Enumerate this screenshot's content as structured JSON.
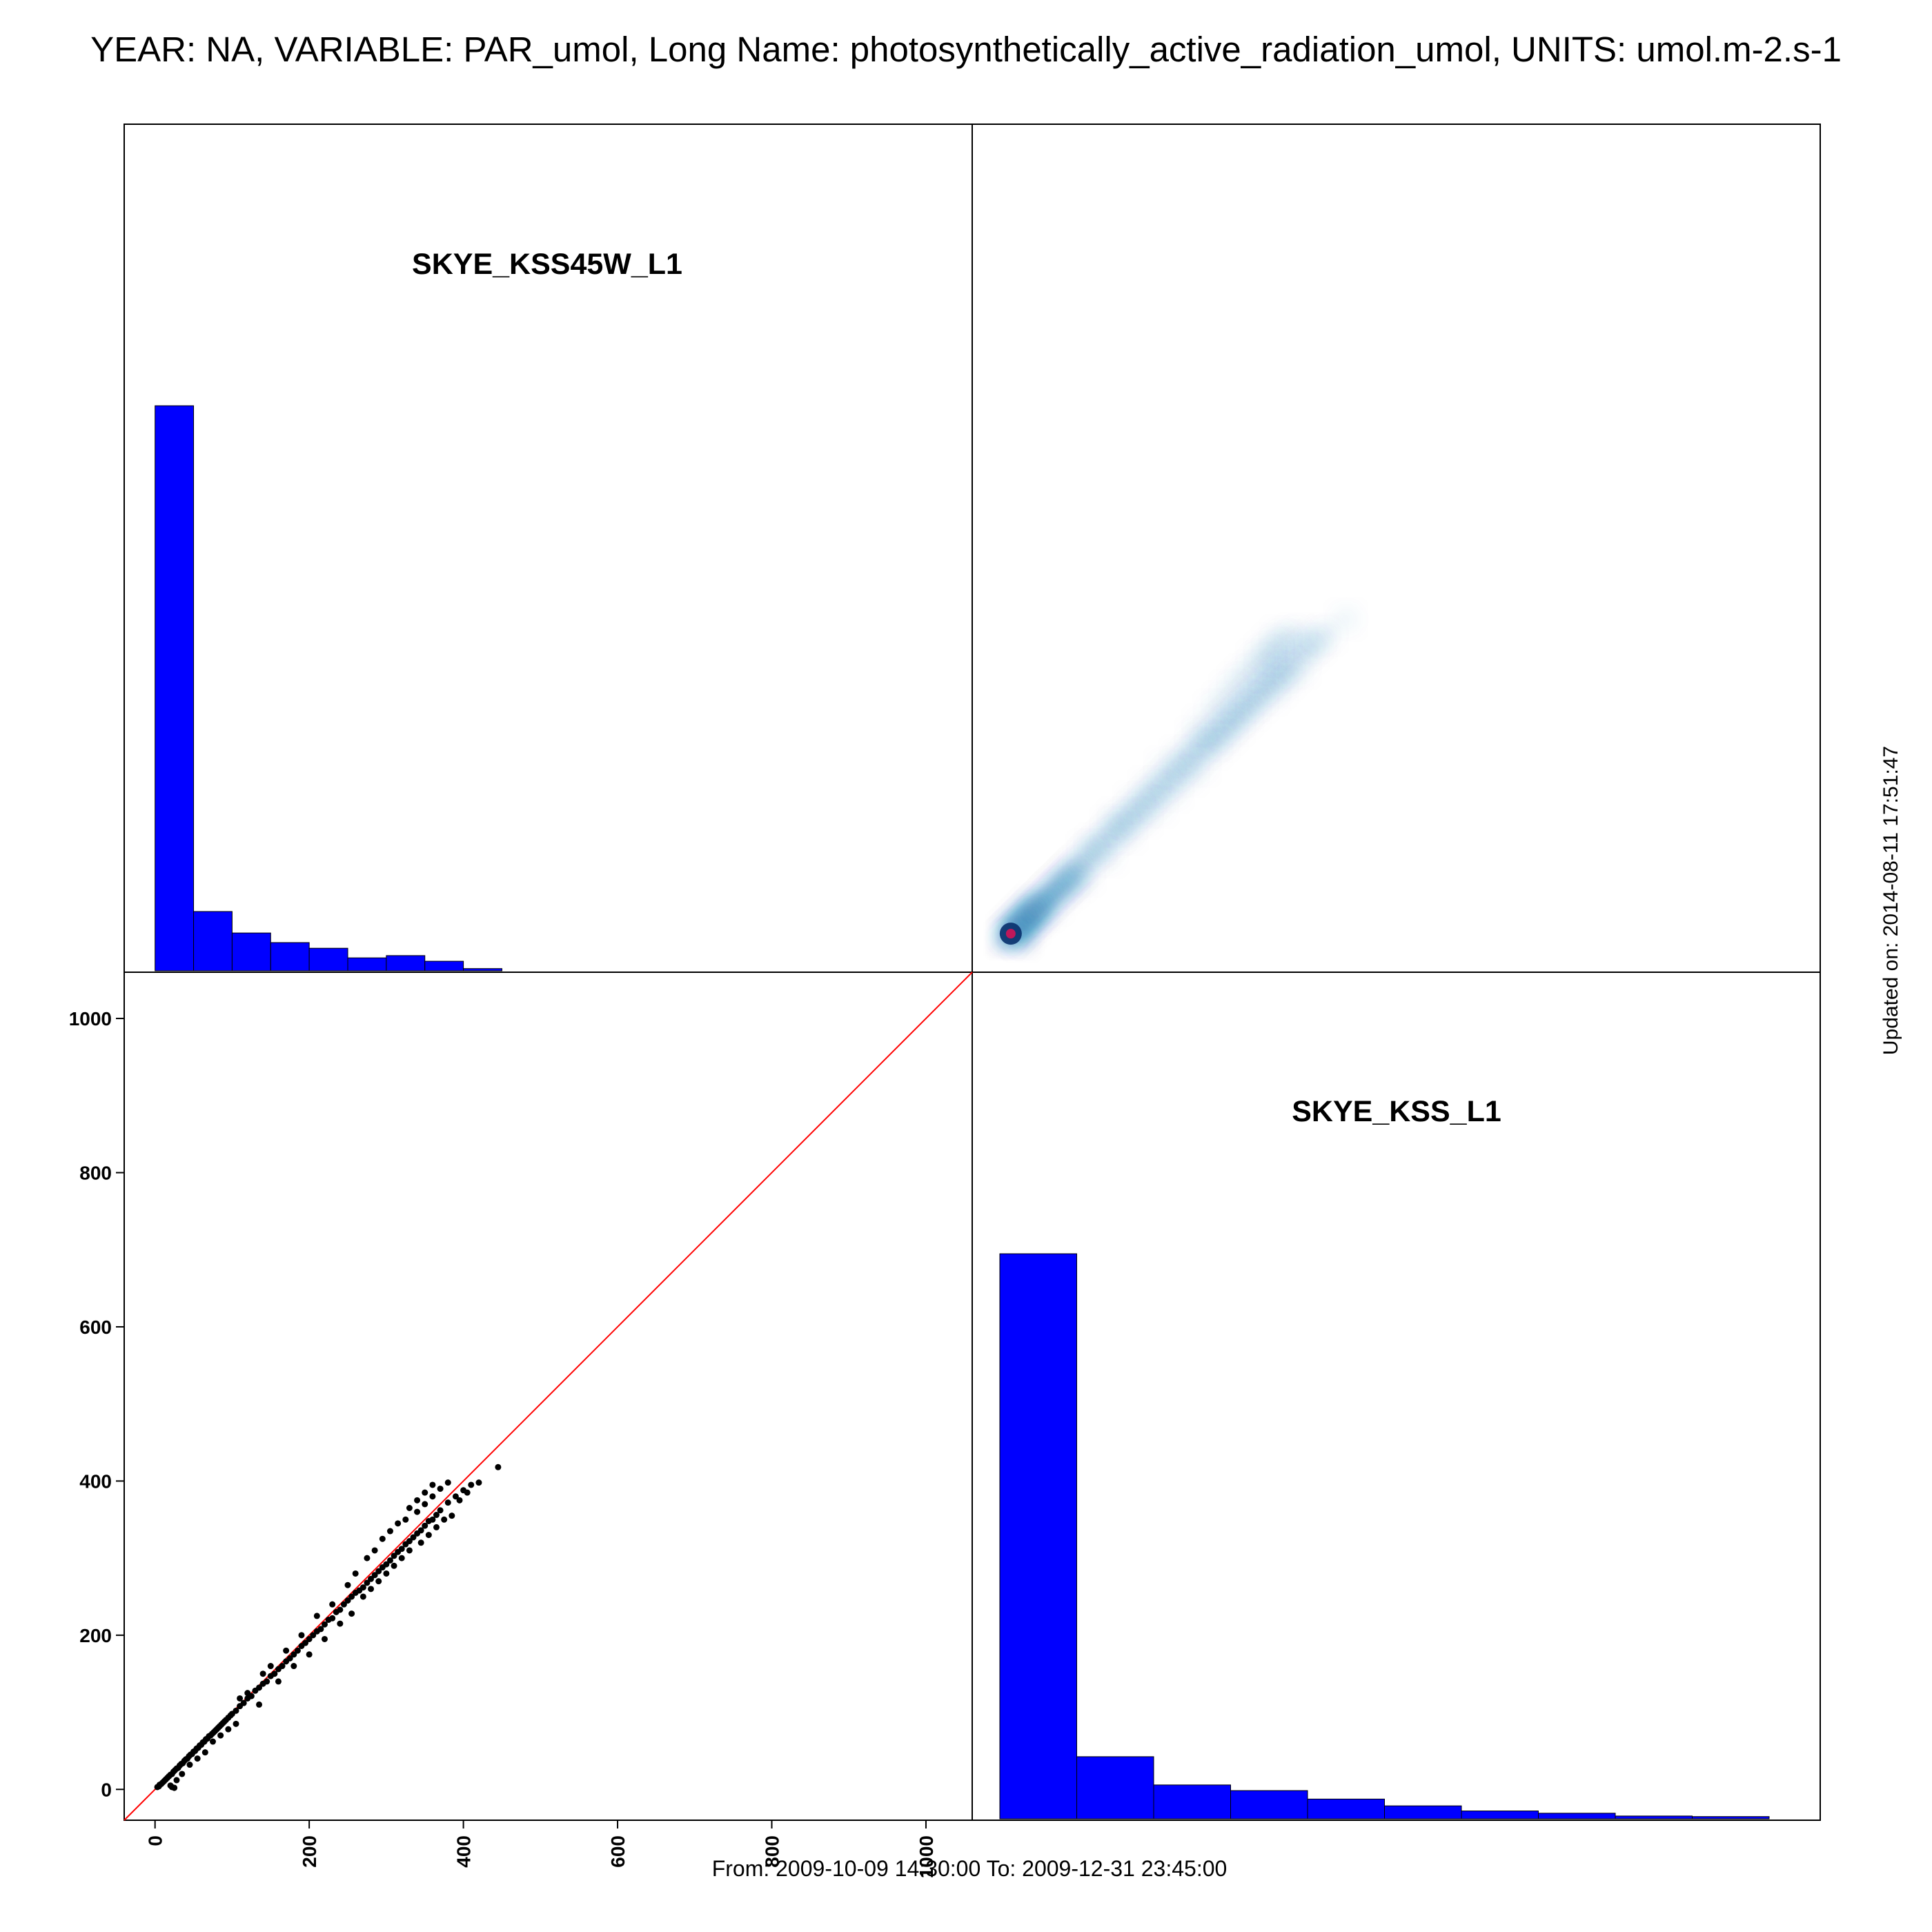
{
  "header": {
    "title": "YEAR: NA, VARIABLE: PAR_umol, Long Name: photosynthetically_active_radiation_umol, UNITS: umol.m-2.s-1"
  },
  "footer": {
    "range": "From: 2009-10-09 14:30:00 To: 2009-12-31 23:45:00",
    "updated": "Updated on: 2014-08-11 17:51:47"
  },
  "colors": {
    "histogram_fill": "#0000FF",
    "identity_line": "#FF0000",
    "points": "#000000",
    "density": "#1f78b4",
    "density_peak": "#c0185a"
  },
  "chart_data": [
    {
      "panel": "top-left",
      "type": "bar",
      "title": "SKYE_KSS45W_L1",
      "bin_edges": [
        0,
        50,
        100,
        150,
        200,
        250,
        300,
        350,
        400,
        450
      ],
      "values": [
        1000,
        105,
        67,
        50,
        40,
        23,
        27,
        17,
        4
      ],
      "ylim": [
        0,
        1000
      ],
      "axes_shown": false
    },
    {
      "panel": "top-right",
      "type": "heatmap",
      "description_kind": "smoothed 2D density of SKYE_KSS45W_L1 vs SKYE_KSS_L1",
      "xlim": [
        -40,
        1060
      ],
      "ylim": [
        -40,
        1060
      ],
      "peak": [
        10,
        10
      ],
      "ridge": [
        [
          10,
          10
        ],
        [
          100,
          90
        ],
        [
          200,
          185
        ],
        [
          300,
          270
        ],
        [
          360,
          330
        ],
        [
          440,
          410
        ],
        [
          350,
          380
        ]
      ],
      "axes_shown": false
    },
    {
      "panel": "bottom-left",
      "type": "scatter",
      "xlabel": "",
      "ylabel": "",
      "xlim": [
        -40,
        1060
      ],
      "ylim": [
        -40,
        1060
      ],
      "xticks": [
        "0",
        "200",
        "400",
        "600",
        "800",
        "1000"
      ],
      "yticks": [
        "0",
        "200",
        "400",
        "600",
        "800",
        "1000"
      ],
      "reference_line": "y = x",
      "points": [
        [
          3,
          3
        ],
        [
          5,
          4
        ],
        [
          6,
          6
        ],
        [
          8,
          7
        ],
        [
          10,
          9
        ],
        [
          12,
          11
        ],
        [
          14,
          13
        ],
        [
          16,
          15
        ],
        [
          18,
          17
        ],
        [
          20,
          19
        ],
        [
          22,
          20
        ],
        [
          24,
          23
        ],
        [
          26,
          25
        ],
        [
          28,
          27
        ],
        [
          30,
          28
        ],
        [
          32,
          31
        ],
        [
          34,
          33
        ],
        [
          36,
          34
        ],
        [
          38,
          37
        ],
        [
          40,
          39
        ],
        [
          42,
          40
        ],
        [
          44,
          43
        ],
        [
          46,
          45
        ],
        [
          48,
          46
        ],
        [
          50,
          49
        ],
        [
          52,
          50
        ],
        [
          54,
          53
        ],
        [
          56,
          54
        ],
        [
          58,
          57
        ],
        [
          60,
          58
        ],
        [
          62,
          61
        ],
        [
          64,
          62
        ],
        [
          66,
          65
        ],
        [
          68,
          66
        ],
        [
          70,
          69
        ],
        [
          72,
          70
        ],
        [
          74,
          72
        ],
        [
          76,
          74
        ],
        [
          78,
          76
        ],
        [
          80,
          78
        ],
        [
          82,
          80
        ],
        [
          84,
          82
        ],
        [
          86,
          84
        ],
        [
          88,
          86
        ],
        [
          90,
          88
        ],
        [
          92,
          90
        ],
        [
          95,
          93
        ],
        [
          98,
          96
        ],
        [
          100,
          98
        ],
        [
          105,
          102
        ],
        [
          110,
          108
        ],
        [
          115,
          112
        ],
        [
          120,
          118
        ],
        [
          125,
          121
        ],
        [
          130,
          128
        ],
        [
          135,
          132
        ],
        [
          140,
          137
        ],
        [
          145,
          140
        ],
        [
          150,
          147
        ],
        [
          155,
          150
        ],
        [
          160,
          156
        ],
        [
          165,
          160
        ],
        [
          170,
          166
        ],
        [
          175,
          170
        ],
        [
          180,
          175
        ],
        [
          185,
          180
        ],
        [
          190,
          186
        ],
        [
          195,
          190
        ],
        [
          200,
          195
        ],
        [
          205,
          200
        ],
        [
          210,
          205
        ],
        [
          215,
          208
        ],
        [
          220,
          214
        ],
        [
          225,
          220
        ],
        [
          230,
          222
        ],
        [
          235,
          230
        ],
        [
          240,
          233
        ],
        [
          245,
          240
        ],
        [
          250,
          245
        ],
        [
          255,
          250
        ],
        [
          260,
          255
        ],
        [
          265,
          258
        ],
        [
          270,
          262
        ],
        [
          275,
          268
        ],
        [
          280,
          273
        ],
        [
          285,
          278
        ],
        [
          290,
          283
        ],
        [
          295,
          288
        ],
        [
          300,
          292
        ],
        [
          305,
          297
        ],
        [
          310,
          303
        ],
        [
          315,
          308
        ],
        [
          320,
          312
        ],
        [
          325,
          318
        ],
        [
          330,
          322
        ],
        [
          335,
          327
        ],
        [
          340,
          332
        ],
        [
          345,
          336
        ],
        [
          350,
          342
        ],
        [
          355,
          348
        ],
        [
          360,
          350
        ],
        [
          365,
          356
        ],
        [
          370,
          362
        ],
        [
          380,
          372
        ],
        [
          390,
          380
        ],
        [
          400,
          388
        ],
        [
          410,
          395
        ],
        [
          420,
          398
        ],
        [
          445,
          418
        ],
        [
          20,
          5
        ],
        [
          22,
          3
        ],
        [
          25,
          2
        ],
        [
          28,
          12
        ],
        [
          35,
          20
        ],
        [
          45,
          32
        ],
        [
          55,
          40
        ],
        [
          65,
          48
        ],
        [
          75,
          62
        ],
        [
          85,
          70
        ],
        [
          95,
          78
        ],
        [
          105,
          85
        ],
        [
          110,
          118
        ],
        [
          120,
          125
        ],
        [
          135,
          110
        ],
        [
          140,
          150
        ],
        [
          150,
          160
        ],
        [
          160,
          140
        ],
        [
          170,
          180
        ],
        [
          180,
          160
        ],
        [
          190,
          200
        ],
        [
          200,
          175
        ],
        [
          210,
          225
        ],
        [
          220,
          195
        ],
        [
          230,
          240
        ],
        [
          240,
          215
        ],
        [
          250,
          265
        ],
        [
          255,
          228
        ],
        [
          260,
          280
        ],
        [
          270,
          250
        ],
        [
          275,
          300
        ],
        [
          280,
          260
        ],
        [
          285,
          310
        ],
        [
          290,
          270
        ],
        [
          295,
          325
        ],
        [
          300,
          280
        ],
        [
          305,
          335
        ],
        [
          310,
          290
        ],
        [
          315,
          345
        ],
        [
          320,
          300
        ],
        [
          325,
          350
        ],
        [
          330,
          310
        ],
        [
          340,
          360
        ],
        [
          345,
          320
        ],
        [
          350,
          370
        ],
        [
          355,
          330
        ],
        [
          360,
          380
        ],
        [
          365,
          340
        ],
        [
          370,
          390
        ],
        [
          375,
          350
        ],
        [
          380,
          398
        ],
        [
          385,
          355
        ],
        [
          395,
          375
        ],
        [
          405,
          385
        ],
        [
          360,
          395
        ],
        [
          350,
          385
        ],
        [
          340,
          375
        ],
        [
          330,
          365
        ]
      ]
    },
    {
      "panel": "bottom-right",
      "type": "bar",
      "title": "SKYE_KSS_L1",
      "bin_edges": [
        0,
        100,
        200,
        300,
        400,
        500,
        600,
        700,
        800,
        900,
        1000
      ],
      "values": [
        1000,
        110,
        60,
        50,
        35,
        23,
        14,
        10,
        5,
        4
      ],
      "ylim": [
        0,
        1000
      ],
      "axes_shown": false
    }
  ]
}
